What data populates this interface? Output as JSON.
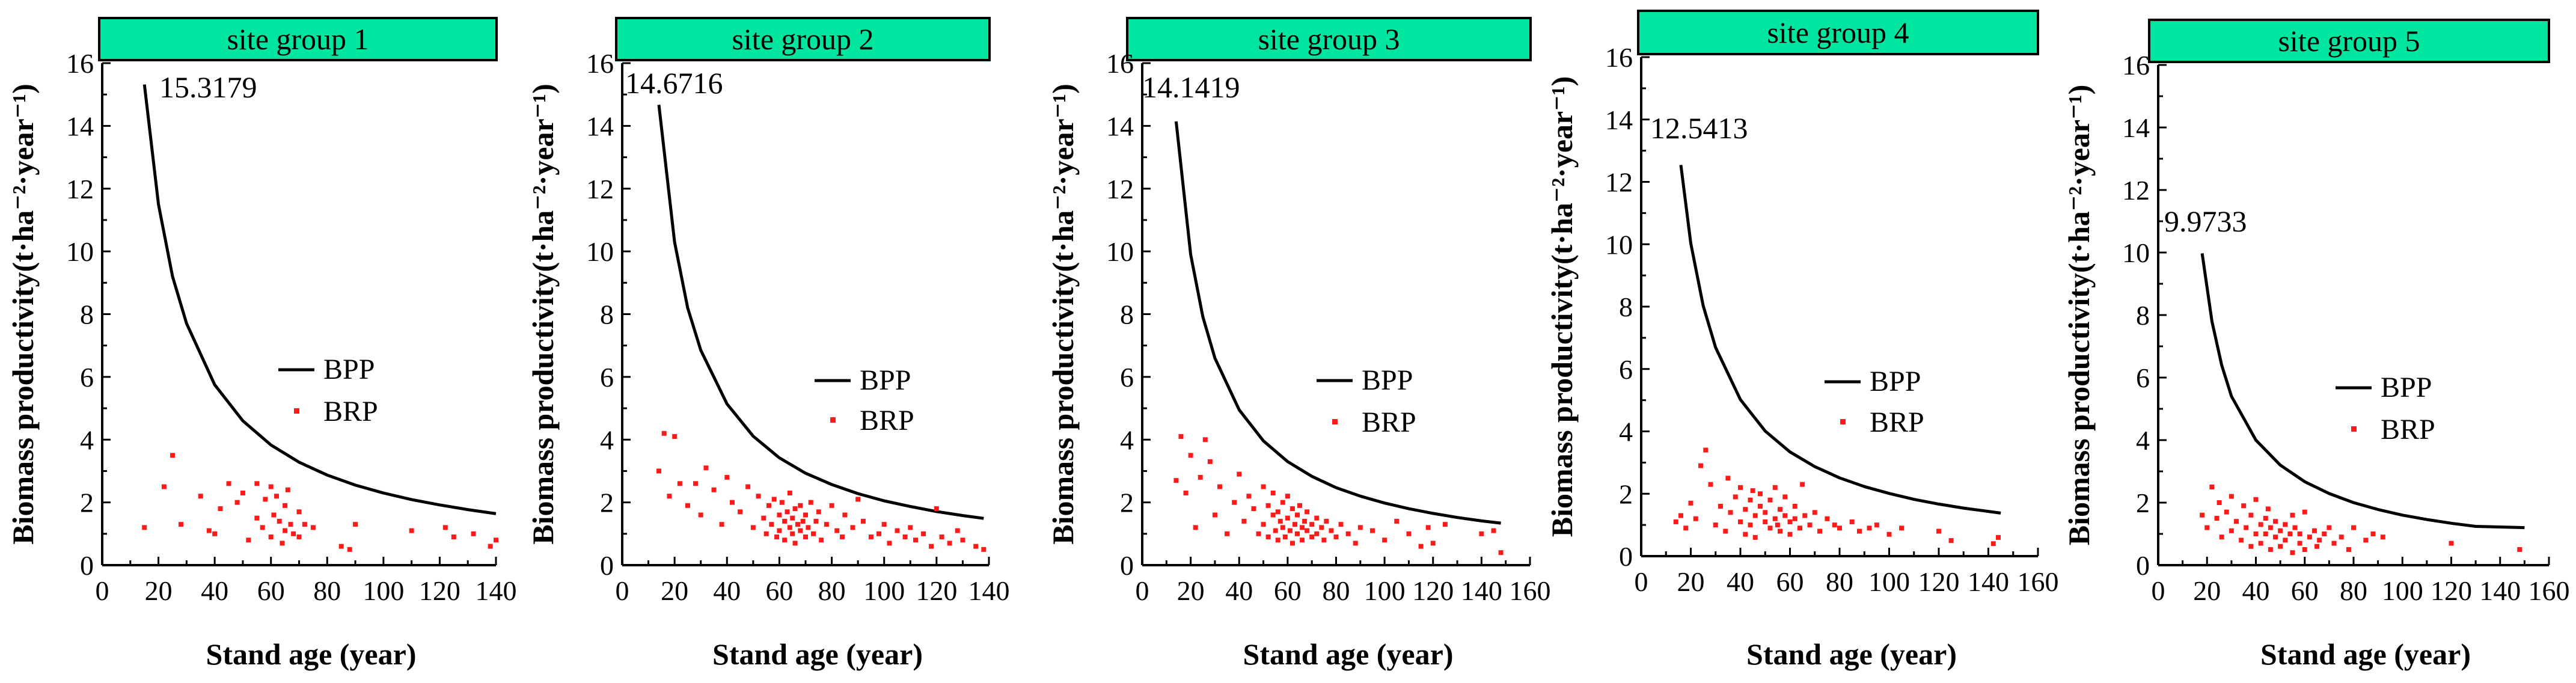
{
  "colors": {
    "strip": "#00e5a0",
    "bpp": "#000000",
    "brp": "#ff1a1a",
    "axis": "#000000"
  },
  "chart_data": [
    {
      "type": "line+scatter",
      "panel_title": "site group 1",
      "xlabel": "Stand age (year)",
      "ylabel": "Biomass productivity(t·ha⁻²·year⁻¹)",
      "xlim": [
        0,
        140
      ],
      "ylim": [
        0,
        16
      ],
      "x_ticks": [
        "0",
        "20",
        "40",
        "60",
        "80",
        "100",
        "120",
        "140"
      ],
      "y_ticks": [
        "0",
        "2",
        "4",
        "6",
        "8",
        "10",
        "12",
        "14",
        "16"
      ],
      "peak_label": "15.3179",
      "legend": [
        "BPP",
        "BRP"
      ],
      "series": [
        {
          "name": "BPP",
          "kind": "line",
          "x": [
            15,
            20,
            25,
            30,
            40,
            50,
            60,
            70,
            80,
            90,
            100,
            110,
            120,
            130,
            140
          ],
          "y": [
            15.3179,
            11.5,
            9.2,
            7.7,
            5.75,
            4.6,
            3.83,
            3.28,
            2.87,
            2.55,
            2.3,
            2.09,
            1.92,
            1.77,
            1.64
          ]
        },
        {
          "name": "BRP",
          "kind": "scatter",
          "x": [
            15,
            22,
            25,
            28,
            35,
            38,
            40,
            42,
            45,
            48,
            50,
            52,
            55,
            55,
            57,
            58,
            60,
            60,
            61,
            62,
            63,
            64,
            65,
            65,
            66,
            67,
            68,
            70,
            70,
            72,
            75,
            85,
            88,
            90,
            110,
            122,
            125,
            132,
            138,
            140
          ],
          "y": [
            1.2,
            2.5,
            3.5,
            1.3,
            2.2,
            1.1,
            1.0,
            1.8,
            2.6,
            2.0,
            2.3,
            0.8,
            1.5,
            2.6,
            1.2,
            2.1,
            0.9,
            2.5,
            1.6,
            2.2,
            1.4,
            0.7,
            1.9,
            1.1,
            2.4,
            1.3,
            1.0,
            1.7,
            0.9,
            1.3,
            1.2,
            0.6,
            0.5,
            1.3,
            1.1,
            1.2,
            0.9,
            1.0,
            0.6,
            0.8
          ]
        }
      ]
    },
    {
      "type": "line+scatter",
      "panel_title": "site group 2",
      "xlabel": "Stand age (year)",
      "ylabel": "Biomass productivity(t·ha⁻²·year⁻¹)",
      "xlim": [
        0,
        140
      ],
      "ylim": [
        0,
        16
      ],
      "x_ticks": [
        "0",
        "20",
        "40",
        "60",
        "80",
        "100",
        "120",
        "140"
      ],
      "y_ticks": [
        "0",
        "2",
        "4",
        "6",
        "8",
        "10",
        "12",
        "14",
        "16"
      ],
      "peak_label": "14.6716",
      "legend": [
        "BPP",
        "BRP"
      ],
      "series": [
        {
          "name": "BPP",
          "kind": "line",
          "x": [
            14,
            20,
            25,
            30,
            40,
            50,
            60,
            70,
            80,
            90,
            100,
            110,
            120,
            130,
            138
          ],
          "y": [
            14.6716,
            10.3,
            8.2,
            6.85,
            5.14,
            4.11,
            3.42,
            2.93,
            2.57,
            2.28,
            2.05,
            1.87,
            1.71,
            1.58,
            1.49
          ]
        },
        {
          "name": "BRP",
          "kind": "scatter",
          "x": [
            14,
            16,
            18,
            20,
            22,
            25,
            28,
            30,
            32,
            35,
            38,
            40,
            42,
            45,
            48,
            50,
            52,
            54,
            55,
            56,
            57,
            58,
            59,
            60,
            60,
            61,
            62,
            62,
            63,
            64,
            64,
            65,
            65,
            66,
            66,
            67,
            68,
            68,
            69,
            70,
            70,
            71,
            72,
            73,
            74,
            75,
            76,
            78,
            80,
            82,
            84,
            85,
            88,
            90,
            92,
            95,
            98,
            100,
            102,
            105,
            108,
            110,
            112,
            115,
            118,
            120,
            122,
            125,
            128,
            130,
            135,
            138
          ],
          "y": [
            3.0,
            4.2,
            2.2,
            4.1,
            2.6,
            1.9,
            2.6,
            1.6,
            3.1,
            2.4,
            1.3,
            2.8,
            2.0,
            1.7,
            2.5,
            1.2,
            2.2,
            1.5,
            1.0,
            1.9,
            1.3,
            2.1,
            0.9,
            1.6,
            1.1,
            2.0,
            1.4,
            0.8,
            1.7,
            1.2,
            2.3,
            1.0,
            1.5,
            1.8,
            0.7,
            1.3,
            1.1,
            1.9,
            1.4,
            0.9,
            1.6,
            1.2,
            2.0,
            1.0,
            1.4,
            1.7,
            0.8,
            1.3,
            1.9,
            1.1,
            0.9,
            1.6,
            1.2,
            2.1,
            1.4,
            0.9,
            1.0,
            1.3,
            0.7,
            1.1,
            0.9,
            1.2,
            0.8,
            1.0,
            0.6,
            1.8,
            0.9,
            0.7,
            1.1,
            0.8,
            0.6,
            0.5
          ]
        }
      ]
    },
    {
      "type": "line+scatter",
      "panel_title": "site group 3",
      "xlabel": "Stand age (year)",
      "ylabel": "Biomass productivity(t·ha⁻²·year⁻¹)",
      "xlim": [
        0,
        160
      ],
      "ylim": [
        0,
        16
      ],
      "x_ticks": [
        "0",
        "20",
        "40",
        "60",
        "80",
        "100",
        "120",
        "140",
        "160"
      ],
      "y_ticks": [
        "0",
        "2",
        "4",
        "6",
        "8",
        "10",
        "12",
        "14",
        "16"
      ],
      "peak_label": "14.1419",
      "legend": [
        "BPP",
        "BRP"
      ],
      "series": [
        {
          "name": "BPP",
          "kind": "line",
          "x": [
            14,
            20,
            25,
            30,
            40,
            50,
            60,
            70,
            80,
            90,
            100,
            110,
            120,
            130,
            140,
            148
          ],
          "y": [
            14.1419,
            9.9,
            7.92,
            6.6,
            4.95,
            3.96,
            3.3,
            2.83,
            2.47,
            2.2,
            1.98,
            1.8,
            1.65,
            1.52,
            1.41,
            1.34
          ]
        },
        {
          "name": "BRP",
          "kind": "scatter",
          "x": [
            14,
            16,
            18,
            20,
            22,
            24,
            26,
            28,
            30,
            32,
            35,
            38,
            40,
            42,
            44,
            46,
            48,
            50,
            50,
            52,
            52,
            54,
            54,
            55,
            56,
            56,
            57,
            58,
            58,
            59,
            60,
            60,
            61,
            62,
            62,
            63,
            64,
            64,
            65,
            66,
            66,
            67,
            68,
            68,
            70,
            70,
            72,
            72,
            74,
            75,
            76,
            78,
            80,
            82,
            85,
            88,
            90,
            95,
            100,
            105,
            110,
            115,
            118,
            120,
            125,
            140,
            145,
            148
          ],
          "y": [
            2.7,
            4.1,
            2.3,
            3.5,
            1.2,
            2.8,
            4.0,
            3.3,
            1.6,
            2.5,
            1.0,
            2.0,
            2.9,
            1.4,
            2.2,
            1.8,
            1.0,
            2.5,
            1.3,
            1.9,
            0.9,
            1.6,
            2.3,
            1.1,
            1.7,
            0.8,
            1.4,
            2.0,
            1.2,
            0.9,
            1.5,
            2.2,
            1.1,
            1.8,
            0.7,
            1.3,
            1.0,
            1.6,
            1.9,
            1.2,
            0.8,
            1.4,
            1.1,
            1.7,
            0.9,
            1.3,
            1.5,
            1.0,
            1.2,
            0.8,
            1.4,
            1.1,
            0.9,
            1.3,
            1.0,
            0.7,
            1.2,
            1.1,
            0.8,
            1.4,
            1.0,
            0.6,
            1.2,
            0.7,
            1.3,
            1.0,
            1.1,
            0.4
          ]
        }
      ]
    },
    {
      "type": "line+scatter",
      "panel_title": "site group 4",
      "xlabel": "Stand age (year)",
      "ylabel": "Biomass productivity(t·ha⁻²·year⁻¹)",
      "xlim": [
        0,
        160
      ],
      "ylim": [
        0,
        16
      ],
      "x_ticks": [
        "0",
        "20",
        "40",
        "60",
        "80",
        "100",
        "120",
        "140",
        "160"
      ],
      "y_ticks": [
        "0",
        "2",
        "4",
        "6",
        "8",
        "10",
        "12",
        "14",
        "16"
      ],
      "peak_label": "12.5413",
      "legend": [
        "BPP",
        "BRP"
      ],
      "series": [
        {
          "name": "BPP",
          "kind": "line",
          "x": [
            16,
            20,
            25,
            30,
            40,
            50,
            60,
            70,
            80,
            90,
            100,
            110,
            120,
            130,
            145
          ],
          "y": [
            12.5413,
            10.03,
            8.03,
            6.69,
            5.02,
            4.01,
            3.34,
            2.87,
            2.51,
            2.23,
            2.01,
            1.82,
            1.67,
            1.54,
            1.38
          ]
        },
        {
          "name": "BRP",
          "kind": "scatter",
          "x": [
            14,
            16,
            18,
            20,
            22,
            24,
            26,
            28,
            30,
            32,
            34,
            35,
            36,
            38,
            40,
            40,
            42,
            42,
            44,
            44,
            45,
            46,
            46,
            48,
            48,
            50,
            50,
            52,
            52,
            54,
            54,
            55,
            56,
            56,
            58,
            58,
            60,
            60,
            62,
            62,
            64,
            65,
            66,
            68,
            70,
            72,
            75,
            78,
            80,
            85,
            88,
            92,
            95,
            100,
            105,
            120,
            125,
            142,
            144
          ],
          "y": [
            1.1,
            1.3,
            0.9,
            1.7,
            1.2,
            2.9,
            3.4,
            2.3,
            1.0,
            1.6,
            0.8,
            2.5,
            1.4,
            1.9,
            1.1,
            2.2,
            0.7,
            1.5,
            1.8,
            1.0,
            2.1,
            1.3,
            0.6,
            1.6,
            2.0,
            1.1,
            1.4,
            0.9,
            1.8,
            1.2,
            2.2,
            1.0,
            1.5,
            0.8,
            1.3,
            1.9,
            1.1,
            0.7,
            1.6,
            1.2,
            0.9,
            2.3,
            1.3,
            1.0,
            1.4,
            0.8,
            1.2,
            1.0,
            0.9,
            1.1,
            0.8,
            0.9,
            1.0,
            0.7,
            0.9,
            0.8,
            0.5,
            0.4,
            0.6
          ]
        }
      ]
    },
    {
      "type": "line+scatter",
      "panel_title": "site group 5",
      "xlabel": "Stand age (year)",
      "ylabel": "Biomass productivity(t·ha⁻²·year⁻¹)",
      "xlim": [
        0,
        160
      ],
      "ylim": [
        0,
        16
      ],
      "x_ticks": [
        "0",
        "20",
        "40",
        "60",
        "80",
        "100",
        "120",
        "140",
        "160"
      ],
      "y_ticks": [
        "0",
        "2",
        "4",
        "6",
        "8",
        "10",
        "12",
        "14",
        "16"
      ],
      "peak_label": "9.9733",
      "legend": [
        "BPP",
        "BRP"
      ],
      "series": [
        {
          "name": "BPP",
          "kind": "line",
          "x": [
            18,
            22,
            26,
            30,
            40,
            50,
            60,
            70,
            80,
            90,
            100,
            110,
            120,
            130,
            150
          ],
          "y": [
            9.9733,
            7.8,
            6.4,
            5.4,
            4.0,
            3.2,
            2.67,
            2.29,
            2.0,
            1.78,
            1.6,
            1.46,
            1.34,
            1.24,
            1.2
          ]
        },
        {
          "name": "BRP",
          "kind": "scatter",
          "x": [
            18,
            20,
            22,
            24,
            25,
            26,
            28,
            30,
            30,
            32,
            34,
            35,
            36,
            38,
            38,
            40,
            40,
            42,
            42,
            44,
            44,
            45,
            46,
            46,
            48,
            48,
            50,
            50,
            52,
            52,
            54,
            55,
            55,
            56,
            58,
            58,
            60,
            60,
            62,
            64,
            65,
            66,
            68,
            70,
            72,
            75,
            78,
            80,
            85,
            88,
            92,
            120,
            148
          ],
          "y": [
            1.6,
            1.2,
            2.5,
            1.5,
            2.0,
            0.9,
            1.7,
            1.1,
            2.2,
            1.4,
            0.8,
            1.9,
            1.2,
            0.6,
            1.6,
            1.0,
            2.1,
            1.3,
            0.7,
            1.5,
            1.0,
            1.8,
            0.5,
            1.2,
            0.9,
            1.4,
            0.6,
            1.1,
            1.3,
            0.8,
            1.0,
            0.4,
            1.6,
            1.2,
            0.7,
            1.0,
            1.7,
            0.5,
            0.9,
            1.1,
            0.6,
            0.8,
            1.0,
            1.2,
            0.7,
            0.9,
            0.5,
            1.2,
            0.8,
            1.0,
            0.9,
            0.7,
            0.5
          ]
        }
      ]
    }
  ]
}
